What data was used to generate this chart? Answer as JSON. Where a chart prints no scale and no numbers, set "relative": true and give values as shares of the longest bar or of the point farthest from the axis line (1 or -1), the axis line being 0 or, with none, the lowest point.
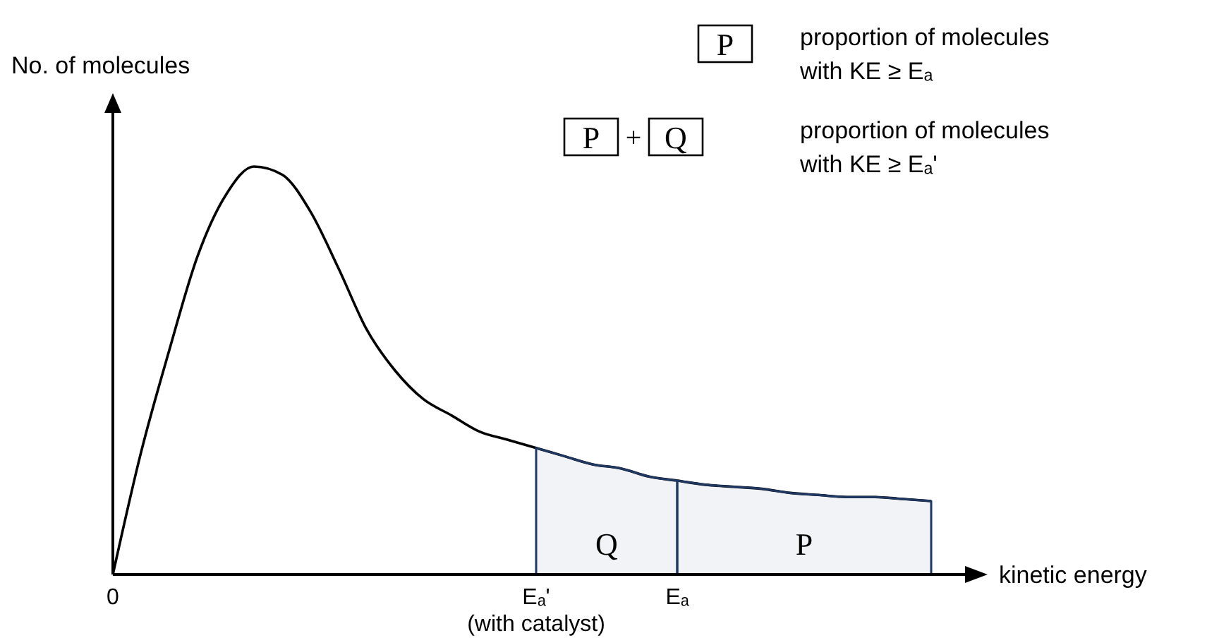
{
  "chart_data": {
    "type": "line",
    "relative": true,
    "xlabel": "kinetic energy",
    "ylabel": "No. of molecules",
    "categories": [
      "0",
      null,
      null,
      null,
      null,
      null,
      null,
      null,
      null,
      null,
      null,
      null,
      null,
      null,
      null,
      "Eₐ'",
      null,
      null,
      null,
      null,
      "Eₐ",
      null,
      null,
      null,
      null,
      null,
      null,
      null,
      null,
      null
    ],
    "series": [
      {
        "color": "#000000",
        "values": [
          0,
          0.3,
          0.55,
          0.78,
          0.93,
          1,
          0.98,
          0.89,
          0.75,
          0.6,
          0.5,
          0.43,
          0.39,
          0.35,
          0.33,
          0.31,
          0.29,
          0.27,
          0.26,
          0.24,
          0.23,
          0.22,
          0.215,
          0.21,
          0.2,
          0.195,
          0.19,
          0.19,
          0.185,
          0.18
        ]
      },
      {
        "type": "area",
        "name": "Q",
        "color": "#1f3864",
        "values": [
          null,
          null,
          null,
          null,
          null,
          null,
          null,
          null,
          null,
          null,
          null,
          null,
          null,
          null,
          null,
          0.31,
          0.29,
          0.27,
          0.26,
          0.24,
          0.23,
          null,
          null,
          null,
          null,
          null,
          null,
          null,
          null,
          null
        ]
      },
      {
        "type": "area",
        "name": "P",
        "color": "#1f3864",
        "values": [
          null,
          null,
          null,
          null,
          null,
          null,
          null,
          null,
          null,
          null,
          null,
          null,
          null,
          null,
          null,
          null,
          null,
          null,
          null,
          null,
          0.23,
          0.22,
          0.215,
          0.21,
          0.2,
          0.195,
          0.19,
          0.19,
          0.185,
          0.18
        ]
      }
    ],
    "annotations": [
      "P",
      "proportion of molecules\nwith KE ≥ Eₐ",
      "P",
      "+",
      "Q",
      "proportion of molecules\nwith KE ≥ Eₐ'",
      "(with catalyst)"
    ],
    "marker": "none",
    "line_style": "solid"
  }
}
